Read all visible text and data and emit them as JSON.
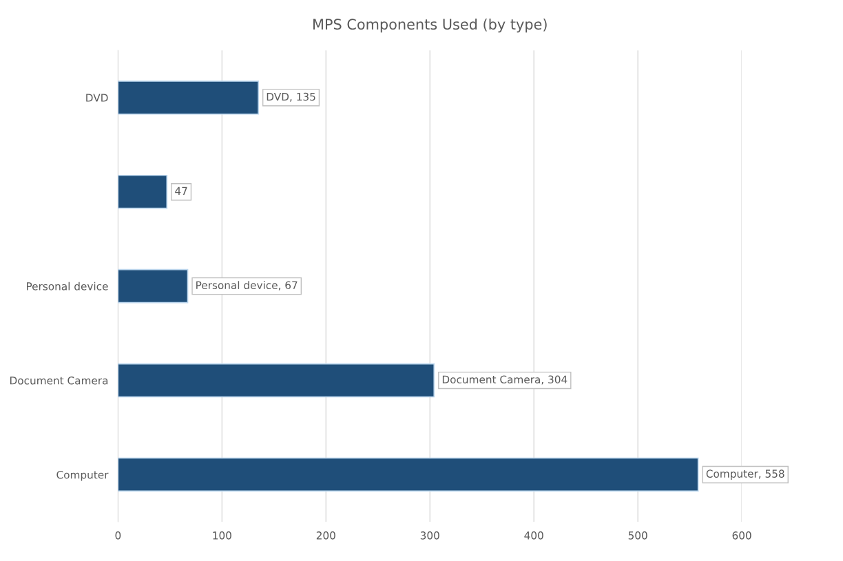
{
  "chart_data": {
    "type": "bar",
    "orientation": "horizontal",
    "title": "MPS Components Used (by type)",
    "categories": [
      "DVD",
      null,
      "Personal device",
      "Document Camera",
      "Computer"
    ],
    "values": [
      135,
      47,
      67,
      304,
      558
    ],
    "color": "#1f4e79",
    "value_labels": [
      "DVD, 135",
      "47",
      "Personal device, 67",
      "Document Camera, 304",
      "Computer, 558"
    ],
    "xlim": [
      0,
      600
    ],
    "xticks": [
      0,
      100,
      200,
      300,
      400,
      500,
      600
    ],
    "grid": "x",
    "legend": false
  }
}
